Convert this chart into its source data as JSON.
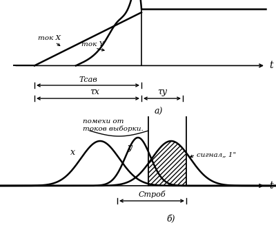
{
  "bg_color": "#ffffff",
  "panel_a": {
    "tok_x_label": "ток X",
    "tok_y_label": "ток Y",
    "t_label": "t",
    "a_label": "а)",
    "tcav_label": "Тсав",
    "tau_x_label": "τx",
    "tau_y_label": "τy"
  },
  "panel_b": {
    "pomekhi_line1": "помехи от",
    "pomekhi_line2": "токов выборки.",
    "x_label": "х",
    "y_label": "у",
    "signal_label": "сигнал„ 1\"",
    "strob_label": "Строб",
    "t_label": "t",
    "b_label": "б)"
  }
}
